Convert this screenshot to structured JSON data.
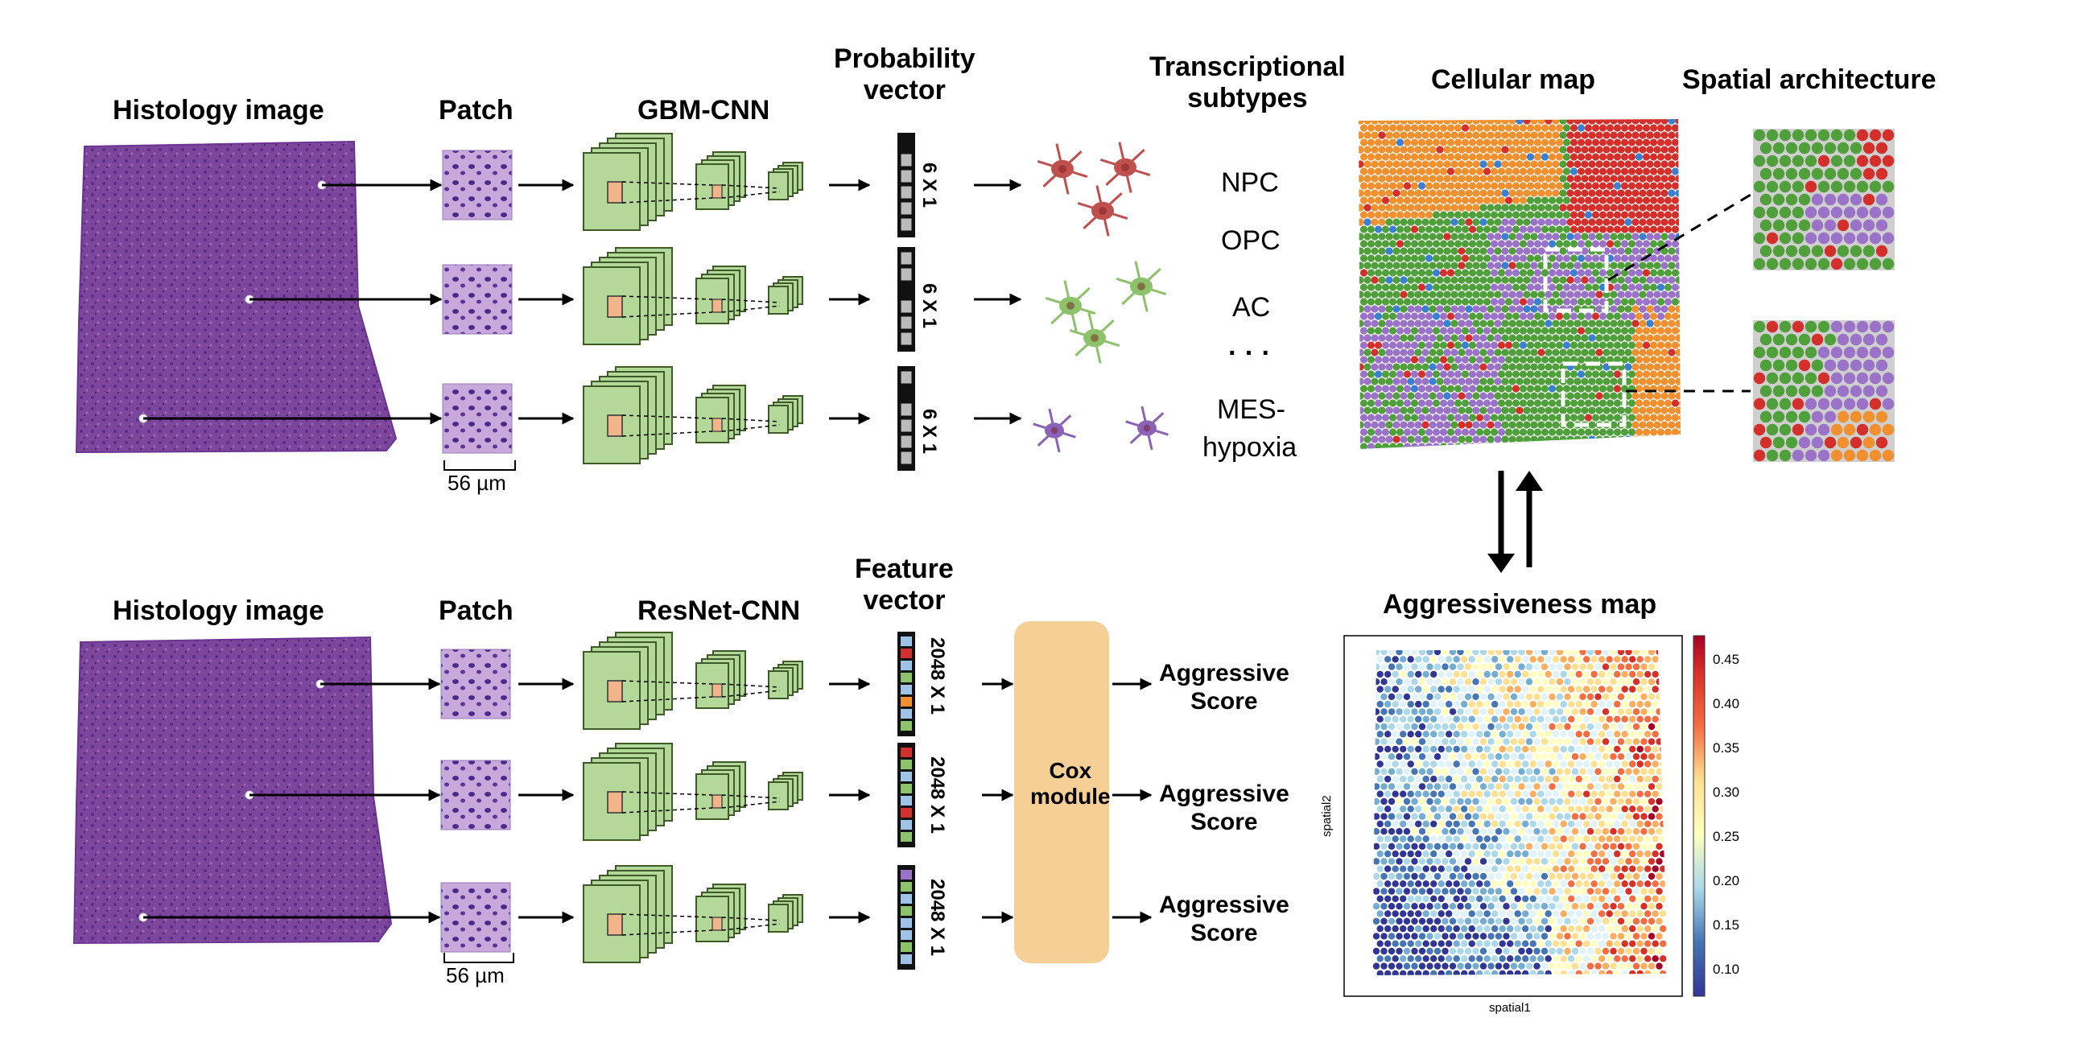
{
  "top_row": {
    "histology_title": "Histology image",
    "patch_title": "Patch",
    "cnn_title": "GBM-CNN",
    "vector_title_line1": "Probability",
    "vector_title_line2": "vector",
    "vector_dim": "6 X 1",
    "subtypes_title_line1": "Transcriptional",
    "subtypes_title_line2": "subtypes",
    "subtypes": [
      "NPC",
      "OPC",
      "AC",
      "· · ·",
      "MES-",
      "hypoxia"
    ],
    "scale_label": "56 µm",
    "cellular_map_title": "Cellular map",
    "spatial_arch_title": "Spatial architecture"
  },
  "bottom_row": {
    "histology_title": "Histology image",
    "patch_title": "Patch",
    "cnn_title": "ResNet-CNN",
    "vector_title_line1": "Feature",
    "vector_title_line2": "vector",
    "vector_dim": "2048 X 1",
    "cox_line1": "Cox",
    "cox_line2": "module",
    "score_line1": "Aggressive",
    "score_line2": "Score",
    "scale_label": "56 µm",
    "aggressiveness_title": "Aggressiveness map",
    "xlabel": "spatial1",
    "ylabel": "spatial2",
    "colorbar_ticks": [
      "0.45",
      "0.40",
      "0.35",
      "0.30",
      "0.25",
      "0.20",
      "0.15",
      "0.10"
    ]
  },
  "colors": {
    "histology": "#7a3f9a",
    "cnn_green": "#b4d89a",
    "cnn_stroke": "#3d5a28",
    "patch_fill": "#f2b48a",
    "npc_red": "#c0504d",
    "opc_green": "#8cc26a",
    "ac_purple": "#8b62b8",
    "map_orange": "#f0902f",
    "map_green": "#4f9f3a",
    "map_purple": "#9a72c8",
    "map_red": "#d3302c",
    "cox_fill": "#f6cf97"
  },
  "icons": [
    "arrow-right-icon",
    "neuron-icon",
    "double-arrow-icon"
  ]
}
